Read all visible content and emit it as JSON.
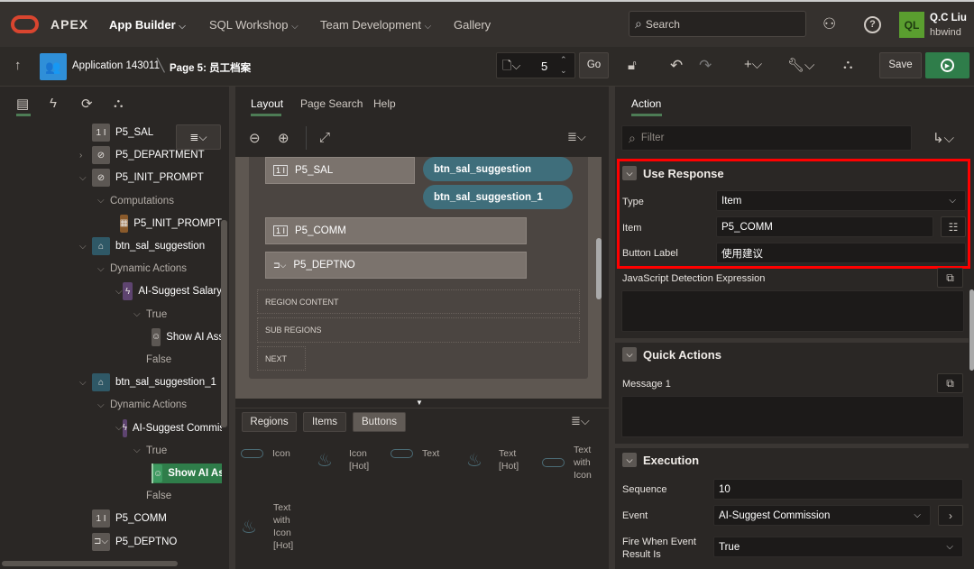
{
  "header": {
    "logo": "APEX",
    "nav": [
      {
        "label": "App Builder",
        "chevron": true
      },
      {
        "label": "SQL Workshop",
        "chevron": true
      },
      {
        "label": "Team Development",
        "chevron": true
      },
      {
        "label": "Gallery",
        "chevron": false
      }
    ],
    "search_placeholder": "Search",
    "user": {
      "initials": "QL",
      "name": "Q.C Liu",
      "workspace": "hbwind",
      "avatar_color": "#5a9e2f"
    }
  },
  "toolbar": {
    "breadcrumb_app": "Application 143011",
    "breadcrumb_page": "Page 5: 员工档案",
    "page_number": "5",
    "go_label": "Go",
    "save_label": "Save",
    "run_color": "#2f7d4a"
  },
  "left": {
    "tree": [
      {
        "level": 0,
        "chevron": "",
        "icon": "text-field",
        "label": "P5_SAL"
      },
      {
        "level": 0,
        "chevron": ">",
        "icon": "hidden",
        "label": "P5_DEPARTMENT"
      },
      {
        "level": 0,
        "chevron": "v",
        "icon": "hidden",
        "label": "P5_INIT_PROMPT"
      },
      {
        "level": 1,
        "chevron": "v",
        "icon": "",
        "label": "Computations"
      },
      {
        "level": 2,
        "chevron": "",
        "icon": "calculator",
        "label": "P5_INIT_PROMPT"
      },
      {
        "level": 0,
        "chevron": "v",
        "icon": "button",
        "label": "btn_sal_suggestion"
      },
      {
        "level": 1,
        "chevron": "v",
        "icon": "",
        "label": "Dynamic Actions"
      },
      {
        "level": 2,
        "chevron": "v",
        "icon": "lightning",
        "label": "AI-Suggest Salary"
      },
      {
        "level": 3,
        "chevron": "v",
        "icon": "",
        "label": "True"
      },
      {
        "level": 4,
        "chevron": "",
        "icon": "ai-assistant",
        "label": "Show AI Assistant"
      },
      {
        "level": 3,
        "chevron": "",
        "icon": "",
        "label": "False"
      },
      {
        "level": 0,
        "chevron": "v",
        "icon": "button",
        "label": "btn_sal_suggestion_1"
      },
      {
        "level": 1,
        "chevron": "v",
        "icon": "",
        "label": "Dynamic Actions"
      },
      {
        "level": 2,
        "chevron": "v",
        "icon": "lightning",
        "label": "AI-Suggest Commission"
      },
      {
        "level": 3,
        "chevron": "v",
        "icon": "",
        "label": "True"
      },
      {
        "level": 4,
        "chevron": "",
        "icon": "ai-assistant",
        "label": "Show AI Assistant",
        "selected": true
      },
      {
        "level": 3,
        "chevron": "",
        "icon": "",
        "label": "False"
      },
      {
        "level": 0,
        "chevron": "",
        "icon": "text-field",
        "label": "P5_COMM"
      },
      {
        "level": 0,
        "chevron": "",
        "icon": "select-list",
        "label": "P5_DEPTNO"
      }
    ]
  },
  "middle": {
    "tabs": [
      "Layout",
      "Page Search",
      "Help"
    ],
    "layout": {
      "items": [
        "P5_SAL",
        "P5_COMM",
        "P5_DEPTNO"
      ],
      "buttons": [
        "btn_sal_suggestion",
        "btn_sal_suggestion_1"
      ],
      "slots": [
        "REGION CONTENT",
        "SUB REGIONS",
        "NEXT"
      ]
    },
    "gallery_tabs": [
      "Regions",
      "Items",
      "Buttons"
    ],
    "gallery": [
      {
        "label": "Icon",
        "hot": false
      },
      {
        "label": "Icon [Hot]",
        "hot": true
      },
      {
        "label": "Text",
        "hot": false
      },
      {
        "label": "Text [Hot]",
        "hot": true
      },
      {
        "label": "Text with Icon",
        "hot": false
      },
      {
        "label": "Text with Icon [Hot]",
        "hot": true
      }
    ]
  },
  "right": {
    "tab": "Action",
    "filter_placeholder": "Filter",
    "use_response": {
      "title": "Use Response",
      "type_label": "Type",
      "type_value": "Item",
      "item_label": "Item",
      "item_value": "P5_COMM",
      "button_label_label": "Button Label",
      "button_label_value": "使用建议"
    },
    "js_label": "JavaScript Detection Expression",
    "quick_actions": {
      "title": "Quick Actions",
      "message1_label": "Message 1"
    },
    "execution": {
      "title": "Execution",
      "sequence_label": "Sequence",
      "sequence_value": "10",
      "event_label": "Event",
      "event_value": "AI-Suggest Commission",
      "fire_label": "Fire When Event Result Is",
      "fire_value": "True"
    },
    "highlight_color": "#ff0000"
  }
}
